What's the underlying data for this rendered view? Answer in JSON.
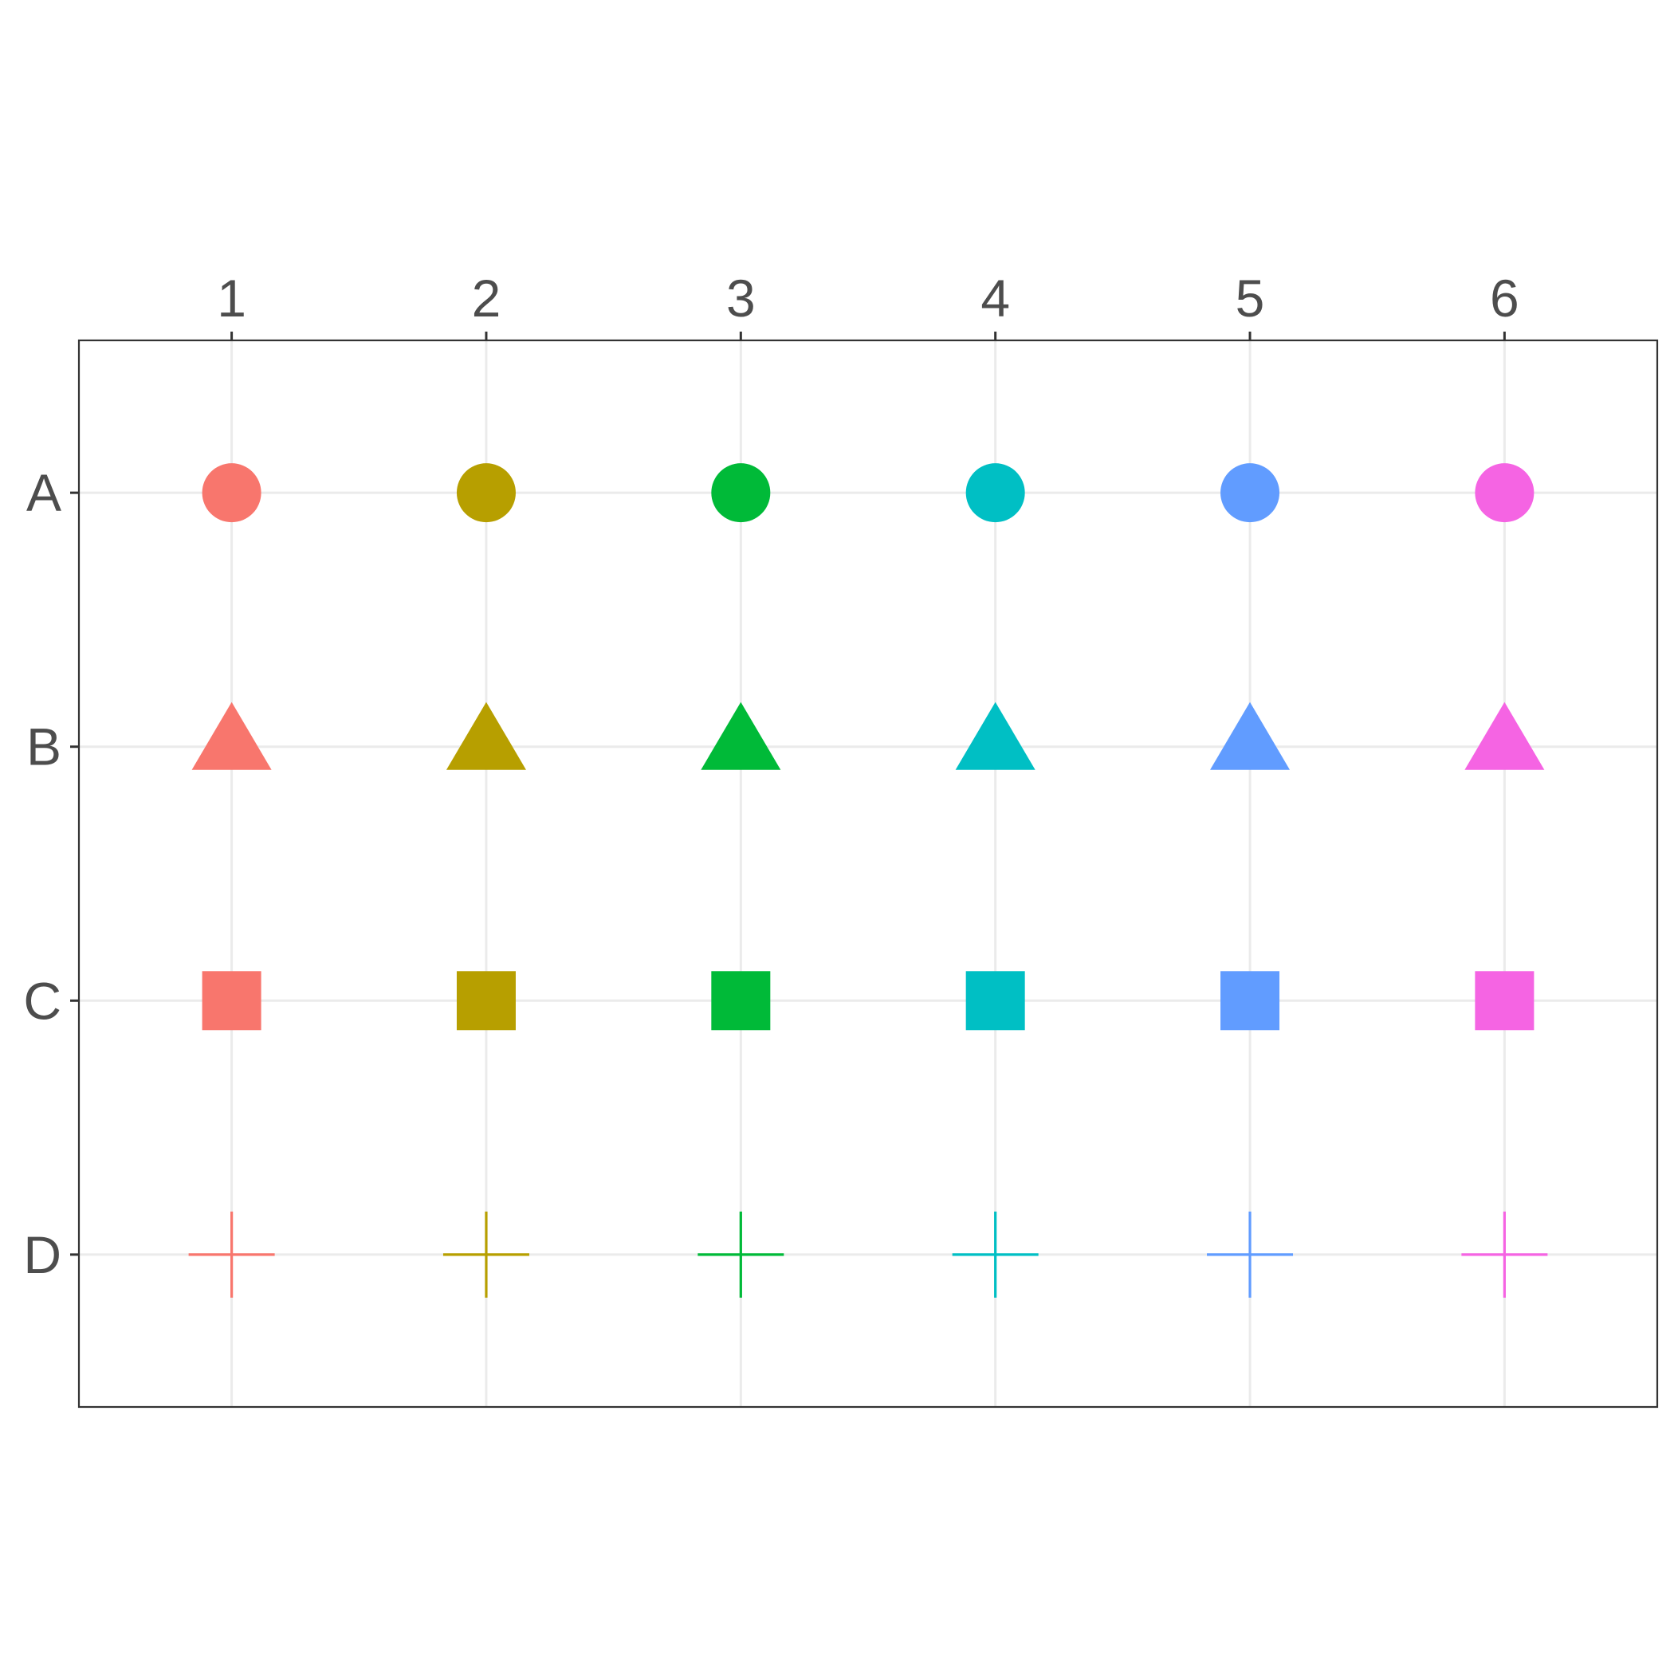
{
  "chart_data": {
    "type": "scatter",
    "title": "",
    "xlabel": "",
    "ylabel": "",
    "x_axis_position": "top",
    "x": [
      1,
      2,
      3,
      4,
      5,
      6
    ],
    "y_categories": [
      "A",
      "B",
      "C",
      "D"
    ],
    "xlim": [
      0.4,
      6.6
    ],
    "grid": true,
    "legend": "none",
    "colors": [
      "#F8766D",
      "#B79F00",
      "#00BA38",
      "#00BFC4",
      "#619CFF",
      "#F564E3"
    ],
    "shapes": {
      "A": "circle",
      "B": "triangle",
      "C": "square",
      "D": "plus"
    },
    "points": [
      {
        "x": 1,
        "y": "A"
      },
      {
        "x": 2,
        "y": "A"
      },
      {
        "x": 3,
        "y": "A"
      },
      {
        "x": 4,
        "y": "A"
      },
      {
        "x": 5,
        "y": "A"
      },
      {
        "x": 6,
        "y": "A"
      },
      {
        "x": 1,
        "y": "B"
      },
      {
        "x": 2,
        "y": "B"
      },
      {
        "x": 3,
        "y": "B"
      },
      {
        "x": 4,
        "y": "B"
      },
      {
        "x": 5,
        "y": "B"
      },
      {
        "x": 6,
        "y": "B"
      },
      {
        "x": 1,
        "y": "C"
      },
      {
        "x": 2,
        "y": "C"
      },
      {
        "x": 3,
        "y": "C"
      },
      {
        "x": 4,
        "y": "C"
      },
      {
        "x": 5,
        "y": "C"
      },
      {
        "x": 6,
        "y": "C"
      },
      {
        "x": 1,
        "y": "D"
      },
      {
        "x": 2,
        "y": "D"
      },
      {
        "x": 3,
        "y": "D"
      },
      {
        "x": 4,
        "y": "D"
      },
      {
        "x": 5,
        "y": "D"
      },
      {
        "x": 6,
        "y": "D"
      }
    ]
  }
}
